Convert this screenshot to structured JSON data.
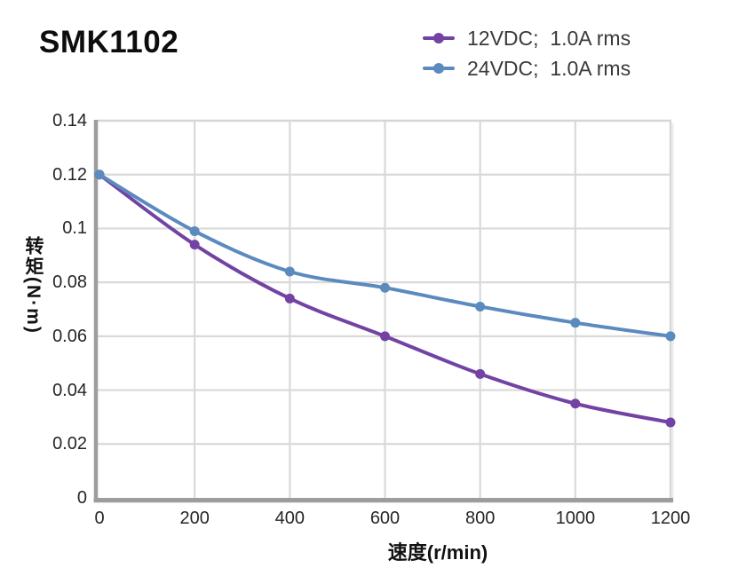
{
  "title": "SMK1102",
  "legend": {
    "items": [
      {
        "label": "12VDC;  1.0A rms",
        "color": "#7243a3"
      },
      {
        "label": "24VDC;  1.0A rms",
        "color": "#5b8abe"
      }
    ]
  },
  "chart_data": {
    "type": "line",
    "title": "SMK1102",
    "xlabel": "速度(r/min)",
    "ylabel": "转矩(N·m)",
    "x": [
      0,
      200,
      400,
      600,
      800,
      1000,
      1200
    ],
    "series": [
      {
        "name": "12VDC;  1.0A rms",
        "color": "#7243a3",
        "values": [
          0.12,
          0.094,
          0.074,
          0.06,
          0.046,
          0.035,
          0.028
        ]
      },
      {
        "name": "24VDC;  1.0A rms",
        "color": "#5b8abe",
        "values": [
          0.12,
          0.099,
          0.084,
          0.078,
          0.071,
          0.065,
          0.06
        ]
      }
    ],
    "xlim": [
      0,
      1200
    ],
    "ylim": [
      0,
      0.14
    ],
    "xticks": [
      0,
      200,
      400,
      600,
      800,
      1000,
      1200
    ],
    "xtick_labels": [
      "0",
      "200",
      "400",
      "600",
      "800",
      "1000",
      "1200"
    ],
    "yticks": [
      0,
      0.02,
      0.04,
      0.06,
      0.08,
      0.1,
      0.12,
      0.14
    ],
    "ytick_labels": [
      "0",
      "0.02",
      "0.04",
      "0.06",
      "0.08",
      "0.1",
      "0.12",
      "0.14"
    ],
    "grid": true,
    "legend_position": "top-right",
    "marker": "circle"
  }
}
